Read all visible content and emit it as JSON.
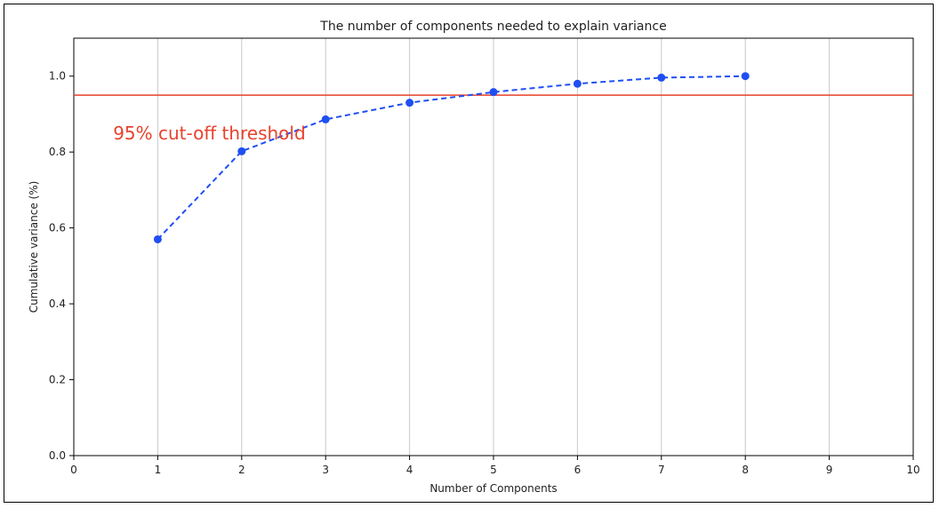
{
  "chart_data": {
    "type": "line",
    "title": "The number of components needed to explain variance",
    "xlabel": "Number of Components",
    "ylabel": "Cumulative variance (%)",
    "xlim": [
      0,
      10
    ],
    "ylim": [
      0,
      1.1
    ],
    "x_ticks": [
      0,
      1,
      2,
      3,
      4,
      5,
      6,
      7,
      8,
      9,
      10
    ],
    "x_tick_labels": [
      "0",
      "1",
      "2",
      "3",
      "4",
      "5",
      "6",
      "7",
      "8",
      "9",
      "10"
    ],
    "y_ticks": [
      0.0,
      0.2,
      0.4,
      0.6,
      0.8,
      1.0
    ],
    "y_tick_labels": [
      "0.0",
      "0.2",
      "0.4",
      "0.6",
      "0.8",
      "1.0"
    ],
    "grid": "x-axis vertical lines",
    "series": [
      {
        "x": [
          1,
          2,
          3,
          4,
          5,
          6,
          7,
          8
        ],
        "values": [
          0.57,
          0.802,
          0.886,
          0.93,
          0.958,
          0.98,
          0.996,
          1.0
        ],
        "color": "#1f4ff2",
        "style": "dashed with circle markers"
      }
    ],
    "threshold": {
      "y": 0.95,
      "color": "#e8412c",
      "label": "95% cut-off threshold",
      "label_x": 0.5,
      "label_y": 0.85
    }
  }
}
